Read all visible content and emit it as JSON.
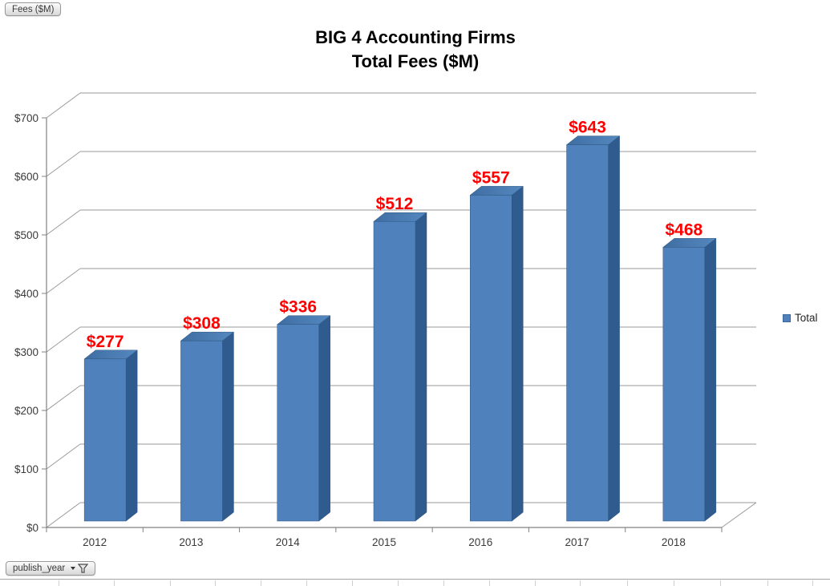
{
  "pivot_buttons": {
    "value_field": "Fees ($M)",
    "axis_field": "publish_year"
  },
  "chart_data": {
    "type": "bar",
    "subtype": "3d-clustered-column",
    "title_line1": "BIG 4 Accounting Firms",
    "title_line2": "Total Fees ($M)",
    "categories": [
      "2012",
      "2013",
      "2014",
      "2015",
      "2016",
      "2017",
      "2018"
    ],
    "series": [
      {
        "name": "Total",
        "values": [
          277,
          308,
          336,
          512,
          557,
          643,
          468
        ]
      }
    ],
    "data_labels": [
      "$277",
      "$308",
      "$336",
      "$512",
      "$557",
      "$643",
      "$468"
    ],
    "y_ticks": [
      "$0",
      "$100",
      "$200",
      "$300",
      "$400",
      "$500",
      "$600",
      "$700"
    ],
    "ylim": [
      0,
      700
    ],
    "grid": true,
    "legend_position": "right",
    "colors": {
      "bar_front": "#4F81BD",
      "bar_side": "#2F5B8F",
      "bar_top_dark": "#3F6DA2",
      "bar_top_light": "#5488BF",
      "bar_outline": "#2E567F",
      "data_label": "#FF0000",
      "gridline": "#9A9A9A",
      "axis_line": "#808080",
      "axis_text": "#3A3A3A"
    }
  },
  "legend": {
    "label": "Total"
  }
}
